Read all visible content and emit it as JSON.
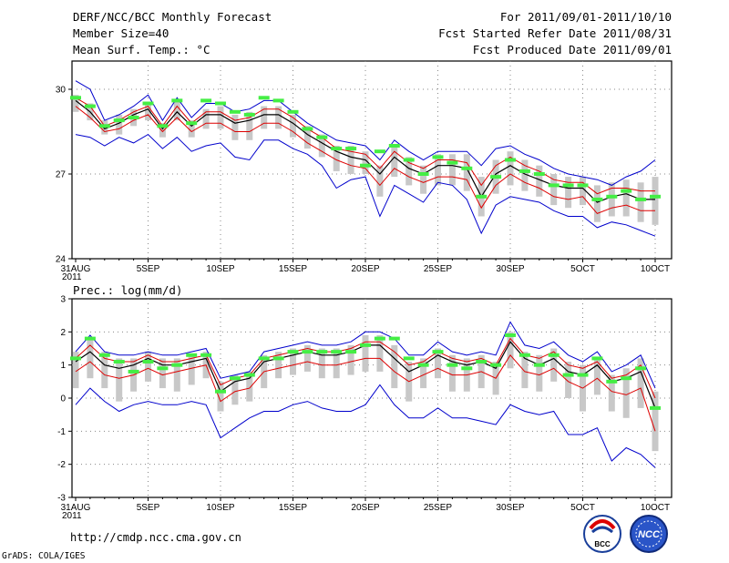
{
  "header": {
    "title": "DERF/NCC/BCC Monthly Forecast",
    "member_size": "Member Size=40",
    "variable": "Mean Surf. Temp.: °C",
    "period": "For 2011/09/01-2011/10/10",
    "started": "Fcst Started Refer Date 2011/08/31",
    "produced": "Fcst Produced Date 2011/09/01"
  },
  "footer": {
    "url": "http://cmdp.ncc.cma.gov.cn",
    "credit": "GrADS: COLA/IGES",
    "logo_left": "BCC",
    "logo_right": "NCC"
  },
  "colors": {
    "envelope": "#0000cc",
    "spread": "#dd0000",
    "mean": "#000000",
    "obs": "#44ee44",
    "box": "#c8c8c8",
    "grid": "#888888"
  },
  "chart_data": [
    {
      "type": "line",
      "title": "Mean Surf. Temp.: °C",
      "ylabel": "Mean Surf. Temp.: °C",
      "ylim": [
        24,
        31
      ],
      "yticks": [
        24,
        27,
        30
      ],
      "xtick_labels": [
        "31AUG",
        "5SEP",
        "10SEP",
        "15SEP",
        "20SEP",
        "25SEP",
        "30SEP",
        "5OCT",
        "10OCT"
      ],
      "xtick_year": "2011",
      "days": 41,
      "series": [
        {
          "name": "max",
          "values": [
            30.3,
            30.0,
            28.9,
            29.1,
            29.4,
            29.8,
            28.9,
            29.7,
            29.0,
            29.5,
            29.5,
            29.2,
            29.3,
            29.6,
            29.6,
            29.2,
            28.8,
            28.5,
            28.2,
            28.1,
            28.0,
            27.5,
            28.2,
            27.8,
            27.5,
            27.8,
            27.8,
            27.8,
            27.3,
            27.9,
            28.0,
            27.7,
            27.5,
            27.2,
            27.0,
            26.9,
            26.8,
            26.6,
            26.9,
            27.1,
            27.5
          ]
        },
        {
          "name": "upper",
          "values": [
            29.7,
            29.4,
            28.7,
            28.9,
            29.2,
            29.4,
            28.7,
            29.4,
            28.8,
            29.2,
            29.2,
            28.9,
            29.0,
            29.3,
            29.3,
            29.0,
            28.6,
            28.3,
            27.9,
            27.8,
            27.7,
            27.2,
            27.8,
            27.4,
            27.2,
            27.5,
            27.5,
            27.4,
            26.6,
            27.3,
            27.6,
            27.3,
            27.1,
            26.8,
            26.7,
            26.7,
            26.3,
            26.5,
            26.5,
            26.4,
            26.4
          ]
        },
        {
          "name": "mean",
          "values": [
            29.6,
            29.2,
            28.6,
            28.8,
            29.1,
            29.3,
            28.6,
            29.2,
            28.7,
            29.1,
            29.1,
            28.8,
            28.9,
            29.1,
            29.1,
            28.8,
            28.4,
            28.1,
            27.8,
            27.6,
            27.5,
            27.0,
            27.6,
            27.2,
            27.0,
            27.3,
            27.3,
            27.2,
            26.2,
            27.0,
            27.3,
            27.0,
            26.8,
            26.6,
            26.5,
            26.5,
            26.0,
            26.2,
            26.3,
            26.1,
            26.1
          ]
        },
        {
          "name": "lower",
          "values": [
            29.4,
            29.0,
            28.5,
            28.6,
            28.9,
            29.1,
            28.5,
            29.0,
            28.5,
            28.8,
            28.8,
            28.5,
            28.5,
            28.8,
            28.8,
            28.5,
            28.1,
            27.8,
            27.5,
            27.3,
            27.2,
            26.6,
            27.2,
            26.9,
            26.7,
            26.9,
            26.9,
            26.8,
            25.8,
            26.6,
            27.0,
            26.7,
            26.5,
            26.2,
            26.1,
            26.2,
            25.6,
            25.8,
            25.9,
            25.7,
            25.7
          ]
        },
        {
          "name": "min",
          "values": [
            28.4,
            28.3,
            28.0,
            28.3,
            28.1,
            28.4,
            27.9,
            28.3,
            27.8,
            28.0,
            28.1,
            27.6,
            27.5,
            28.2,
            28.2,
            27.9,
            27.7,
            27.3,
            26.5,
            26.8,
            26.9,
            25.5,
            26.6,
            26.3,
            26.0,
            26.7,
            26.6,
            26.1,
            24.9,
            25.9,
            26.2,
            26.1,
            26.0,
            25.7,
            25.5,
            25.5,
            25.1,
            25.3,
            25.2,
            25.0,
            24.8
          ]
        }
      ],
      "boxes": {
        "high": [
          29.8,
          29.5,
          28.9,
          29.1,
          29.3,
          29.5,
          28.8,
          29.6,
          28.9,
          29.3,
          29.4,
          29.1,
          29.2,
          29.4,
          29.4,
          29.1,
          28.7,
          28.4,
          28.0,
          28.0,
          27.8,
          27.3,
          28.0,
          27.6,
          27.3,
          27.7,
          27.7,
          27.7,
          26.9,
          27.5,
          27.8,
          27.5,
          27.3,
          27.0,
          26.9,
          26.9,
          26.6,
          26.7,
          26.8,
          26.7,
          26.9
        ],
        "low": [
          29.2,
          28.9,
          28.4,
          28.4,
          28.7,
          28.9,
          28.3,
          28.9,
          28.3,
          28.6,
          28.6,
          28.2,
          28.2,
          28.6,
          28.6,
          28.3,
          27.9,
          27.6,
          27.1,
          27.0,
          27.0,
          26.2,
          26.9,
          26.6,
          26.3,
          26.6,
          26.6,
          26.4,
          25.5,
          26.3,
          26.6,
          26.4,
          26.2,
          25.9,
          25.8,
          25.9,
          25.3,
          25.5,
          25.5,
          25.3,
          25.2
        ]
      },
      "obs": [
        29.7,
        29.4,
        28.7,
        28.9,
        29.0,
        29.5,
        28.7,
        29.6,
        28.8,
        29.6,
        29.5,
        29.2,
        29.1,
        29.7,
        29.6,
        29.2,
        28.6,
        28.3,
        27.9,
        27.9,
        27.3,
        27.8,
        28.0,
        27.5,
        27.0,
        27.6,
        27.4,
        27.2,
        26.2,
        26.9,
        27.5,
        27.1,
        27.0,
        26.6,
        26.6,
        26.6,
        26.1,
        26.2,
        26.4,
        26.1,
        26.2
      ]
    },
    {
      "type": "line",
      "title": "Prec.: log(mm/d)",
      "ylabel": "Prec.: log(mm/d)",
      "ylim": [
        -3,
        3
      ],
      "yticks": [
        -3,
        -2,
        -1,
        0,
        1,
        2,
        3
      ],
      "xtick_labels": [
        "31AUG",
        "5SEP",
        "10SEP",
        "15SEP",
        "20SEP",
        "25SEP",
        "30SEP",
        "5OCT",
        "10OCT"
      ],
      "xtick_year": "2011",
      "days": 41,
      "series": [
        {
          "name": "max",
          "values": [
            1.4,
            1.9,
            1.4,
            1.3,
            1.3,
            1.4,
            1.3,
            1.3,
            1.4,
            1.5,
            0.6,
            0.7,
            0.8,
            1.4,
            1.5,
            1.6,
            1.7,
            1.6,
            1.6,
            1.7,
            2.0,
            2.0,
            1.8,
            1.3,
            1.3,
            1.7,
            1.4,
            1.3,
            1.4,
            1.3,
            2.3,
            1.6,
            1.5,
            1.7,
            1.3,
            1.1,
            1.4,
            0.8,
            1.0,
            1.3,
            0.3
          ]
        },
        {
          "name": "upper",
          "values": [
            1.2,
            1.6,
            1.2,
            1.1,
            1.1,
            1.3,
            1.1,
            1.1,
            1.2,
            1.3,
            0.4,
            0.6,
            0.7,
            1.2,
            1.3,
            1.4,
            1.5,
            1.4,
            1.4,
            1.5,
            1.7,
            1.7,
            1.4,
            1.0,
            1.1,
            1.4,
            1.2,
            1.1,
            1.2,
            1.0,
            1.8,
            1.3,
            1.2,
            1.4,
            1.0,
            0.9,
            1.1,
            0.6,
            0.7,
            1.0,
            0.0
          ]
        },
        {
          "name": "mean",
          "values": [
            1.1,
            1.4,
            1.0,
            0.9,
            1.0,
            1.2,
            1.0,
            1.0,
            1.1,
            1.2,
            0.2,
            0.5,
            0.6,
            1.1,
            1.2,
            1.3,
            1.4,
            1.3,
            1.3,
            1.4,
            1.6,
            1.6,
            1.2,
            0.8,
            1.0,
            1.3,
            1.1,
            1.0,
            1.1,
            0.9,
            1.7,
            1.2,
            1.0,
            1.2,
            0.8,
            0.7,
            1.0,
            0.5,
            0.6,
            0.8,
            -0.3
          ]
        },
        {
          "name": "lower",
          "values": [
            0.8,
            1.1,
            0.7,
            0.6,
            0.7,
            0.9,
            0.7,
            0.8,
            0.9,
            1.0,
            -0.1,
            0.2,
            0.3,
            0.8,
            0.9,
            1.0,
            1.1,
            1.0,
            1.0,
            1.1,
            1.2,
            1.2,
            0.8,
            0.5,
            0.7,
            0.9,
            0.7,
            0.7,
            0.8,
            0.6,
            1.3,
            0.8,
            0.7,
            0.9,
            0.5,
            0.3,
            0.6,
            0.2,
            0.1,
            0.3,
            -1.0
          ]
        },
        {
          "name": "min",
          "values": [
            -0.2,
            0.3,
            -0.1,
            -0.4,
            -0.2,
            -0.1,
            -0.2,
            -0.2,
            -0.1,
            -0.2,
            -1.2,
            -0.9,
            -0.6,
            -0.4,
            -0.4,
            -0.2,
            -0.1,
            -0.3,
            -0.4,
            -0.4,
            -0.2,
            0.4,
            -0.2,
            -0.6,
            -0.6,
            -0.3,
            -0.6,
            -0.6,
            -0.7,
            -0.8,
            -0.2,
            -0.4,
            -0.5,
            -0.4,
            -1.1,
            -1.1,
            -0.9,
            -1.9,
            -1.5,
            -1.7,
            -2.1
          ]
        },
        {
          "name": "max_outer",
          "values": [
            1.4,
            1.9,
            1.4,
            1.3,
            1.3,
            1.4,
            1.3,
            1.3,
            1.4,
            1.5,
            0.6,
            0.7,
            0.8,
            1.4,
            1.5,
            1.6,
            1.7,
            1.6,
            1.6,
            1.7,
            2.0,
            2.0,
            1.8,
            1.3,
            1.3,
            1.7,
            1.4,
            1.3,
            1.4,
            1.3,
            2.3,
            1.6,
            1.5,
            1.7,
            1.3,
            1.1,
            1.4,
            0.8,
            1.0,
            1.3,
            0.3
          ]
        }
      ],
      "boxes": {
        "high": [
          1.4,
          1.8,
          1.4,
          1.2,
          1.2,
          1.4,
          1.2,
          1.2,
          1.3,
          1.4,
          0.5,
          0.7,
          0.8,
          1.3,
          1.4,
          1.5,
          1.6,
          1.5,
          1.5,
          1.6,
          1.9,
          1.9,
          1.6,
          1.1,
          1.2,
          1.5,
          1.3,
          1.2,
          1.3,
          1.1,
          2.0,
          1.4,
          1.3,
          1.5,
          1.1,
          1.0,
          1.2,
          0.7,
          0.9,
          1.2,
          0.2
        ],
        "low": [
          0.3,
          0.6,
          0.3,
          -0.1,
          0.2,
          0.5,
          0.3,
          0.2,
          0.4,
          0.6,
          -0.4,
          -0.2,
          -0.1,
          0.3,
          0.6,
          0.7,
          0.8,
          0.6,
          0.6,
          0.7,
          0.8,
          0.8,
          0.3,
          -0.1,
          0.3,
          0.6,
          0.2,
          0.2,
          0.3,
          0.1,
          0.9,
          0.3,
          0.2,
          0.5,
          0.0,
          -0.4,
          0.1,
          -0.4,
          -0.6,
          -0.3,
          -1.6
        ]
      },
      "obs": [
        1.2,
        1.8,
        1.3,
        1.1,
        0.8,
        1.1,
        0.9,
        1.0,
        1.3,
        1.3,
        0.2,
        0.6,
        0.7,
        1.2,
        1.2,
        1.4,
        1.4,
        1.4,
        1.4,
        1.4,
        1.6,
        1.8,
        1.8,
        1.2,
        1.0,
        1.4,
        1.0,
        0.9,
        1.1,
        1.0,
        1.9,
        1.3,
        1.0,
        1.3,
        0.7,
        0.7,
        1.2,
        0.5,
        0.6,
        0.9,
        -0.3
      ]
    }
  ]
}
